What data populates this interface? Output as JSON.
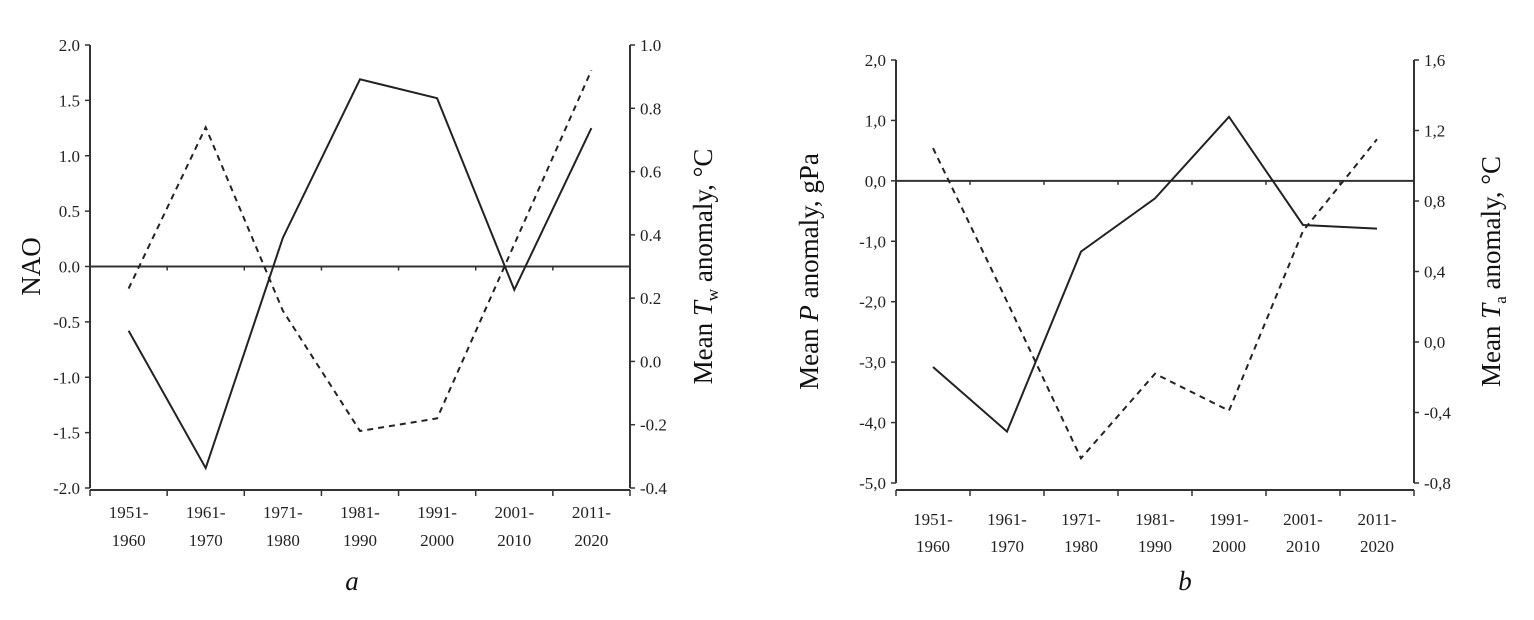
{
  "chart_data": [
    {
      "type": "line",
      "panel_label": "a",
      "categories": [
        [
          "1951-",
          "1960"
        ],
        [
          "1961-",
          "1970"
        ],
        [
          "1971-",
          "1980"
        ],
        [
          "1981-",
          "1990"
        ],
        [
          "1991-",
          "2000"
        ],
        [
          "2001-",
          "2010"
        ],
        [
          "2011-",
          "2020"
        ]
      ],
      "ylabel_left": {
        "pre": "NAO",
        "var": "",
        "sub": "",
        "post": ""
      },
      "ylabel_right": {
        "pre": "Mean ",
        "var": "T",
        "sub": "w",
        "post": " anomaly, °C"
      },
      "ylim_left": [
        -2.0,
        2.0
      ],
      "ylim_right": [
        -0.4,
        1.0
      ],
      "yticks_left": [
        {
          "v": 2.0,
          "t": "2.0"
        },
        {
          "v": 1.5,
          "t": "1.5"
        },
        {
          "v": 1.0,
          "t": "1.0"
        },
        {
          "v": 0.5,
          "t": "0.5"
        },
        {
          "v": 0.0,
          "t": "0.0"
        },
        {
          "v": -0.5,
          "t": "-0.5"
        },
        {
          "v": -1.0,
          "t": "-1.0"
        },
        {
          "v": -1.5,
          "t": "-1.5"
        },
        {
          "v": -2.0,
          "t": "-2.0"
        }
      ],
      "yticks_right": [
        {
          "v": 1.0,
          "t": "1.0"
        },
        {
          "v": 0.8,
          "t": "0.8"
        },
        {
          "v": 0.6,
          "t": "0.6"
        },
        {
          "v": 0.4,
          "t": "0.4"
        },
        {
          "v": 0.2,
          "t": "0.2"
        },
        {
          "v": 0.0,
          "t": "0.0"
        },
        {
          "v": -0.2,
          "t": "-0.2"
        },
        {
          "v": -0.4,
          "t": "-0.4"
        }
      ],
      "series": [
        {
          "name": "NAO",
          "axis": "left",
          "style": "solid",
          "values": [
            -0.58,
            -1.82,
            0.26,
            1.69,
            1.52,
            -0.21,
            1.25
          ]
        },
        {
          "name": "Mean Tw anomaly",
          "axis": "right",
          "style": "dashed",
          "values": [
            0.23,
            0.74,
            0.16,
            -0.22,
            -0.18,
            0.37,
            0.92
          ]
        }
      ],
      "reference_line": 0.0,
      "grid": false
    },
    {
      "type": "line",
      "panel_label": "b",
      "categories": [
        [
          "1951-",
          "1960"
        ],
        [
          "1961-",
          "1970"
        ],
        [
          "1971-",
          "1980"
        ],
        [
          "1981-",
          "1990"
        ],
        [
          "1991-",
          "2000"
        ],
        [
          "2001-",
          "2010"
        ],
        [
          "2011-",
          "2020"
        ]
      ],
      "ylabel_left": {
        "pre": "Mean ",
        "var": "P",
        "sub": "",
        "post": " anomaly, gPa"
      },
      "ylabel_right": {
        "pre": "Mean ",
        "var": "T",
        "sub": "a",
        "post": " anomaly, °C"
      },
      "ylim_left": [
        -5.0,
        2.0
      ],
      "ylim_right": [
        -0.8,
        1.6
      ],
      "yticks_left": [
        {
          "v": 2.0,
          "t": "2,0"
        },
        {
          "v": 1.0,
          "t": "1,0"
        },
        {
          "v": 0.0,
          "t": "0,0"
        },
        {
          "v": -1.0,
          "t": "-1,0"
        },
        {
          "v": -2.0,
          "t": "-2,0"
        },
        {
          "v": -3.0,
          "t": "-3,0"
        },
        {
          "v": -4.0,
          "t": "-4,0"
        },
        {
          "v": -5.0,
          "t": "-5,0"
        }
      ],
      "yticks_right": [
        {
          "v": 1.6,
          "t": "1,6"
        },
        {
          "v": 1.2,
          "t": "1,2"
        },
        {
          "v": 0.8,
          "t": "0,8"
        },
        {
          "v": 0.4,
          "t": "0,4"
        },
        {
          "v": 0.0,
          "t": "0,0"
        },
        {
          "v": -0.4,
          "t": "-0,4"
        },
        {
          "v": -0.8,
          "t": "-0,8"
        }
      ],
      "series": [
        {
          "name": "Mean P anomaly",
          "axis": "left",
          "style": "solid",
          "values": [
            -3.08,
            -4.15,
            -1.17,
            -0.29,
            1.06,
            -0.73,
            -0.79
          ]
        },
        {
          "name": "Mean Ta anomaly",
          "axis": "right",
          "style": "dashed",
          "values": [
            1.1,
            0.23,
            -0.66,
            -0.18,
            -0.39,
            0.63,
            1.15
          ]
        }
      ],
      "reference_line": 0.0,
      "grid": false
    }
  ]
}
